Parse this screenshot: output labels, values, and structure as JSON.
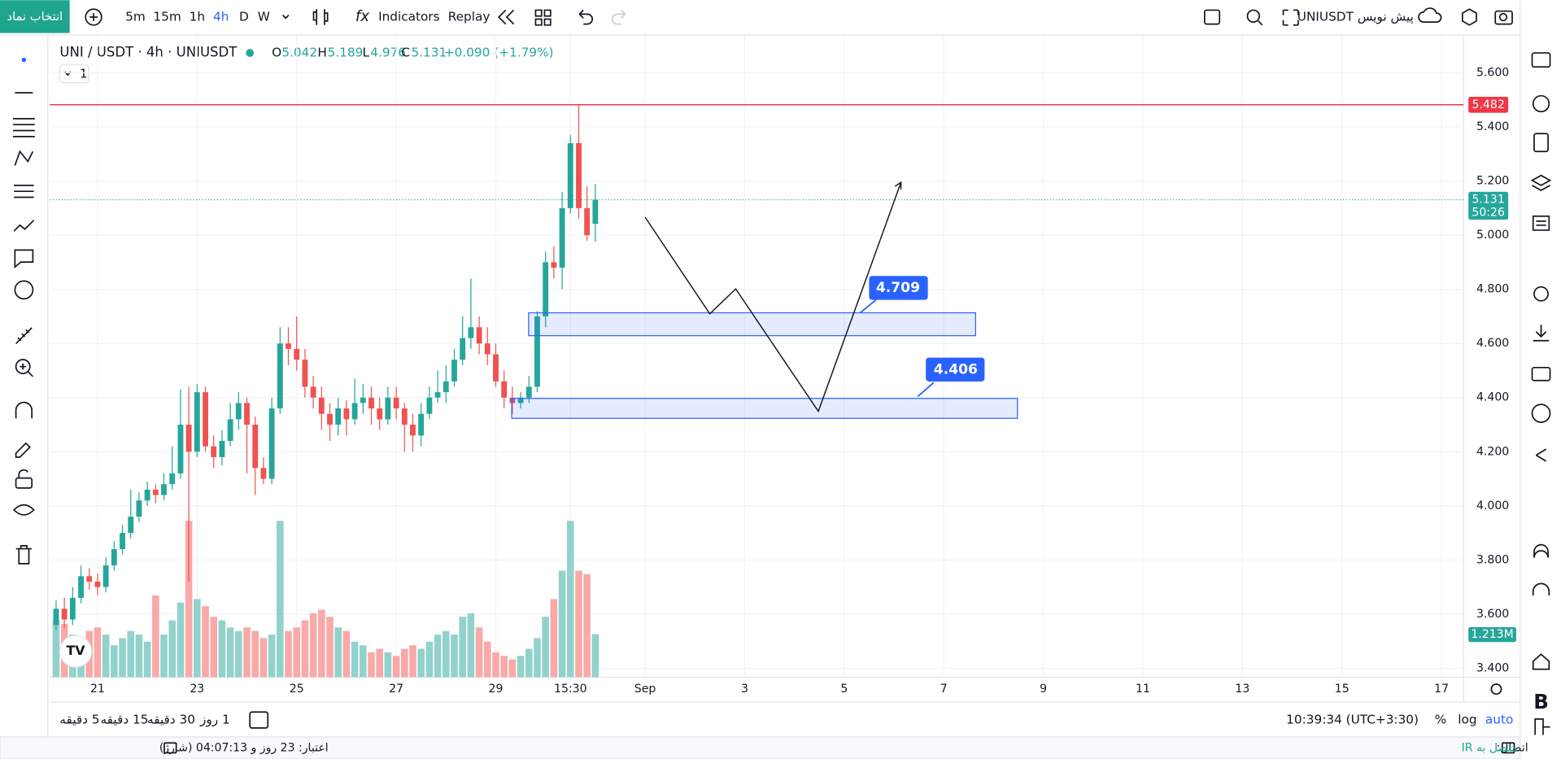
{
  "toolbar": {
    "symbol_button": "انتخاب نماد",
    "intervals": [
      "5m",
      "15m",
      "1h",
      "4h",
      "D",
      "W"
    ],
    "indicators": "Indicators",
    "replay": "Replay",
    "layout_name": "UNIUSDT پیش نویس"
  },
  "chart_data": {
    "type": "candlestick",
    "title": "UNI / USDT · 4h · UNIUSDT",
    "legend": {
      "open_label": "O",
      "open": 5.042,
      "high_label": "H",
      "high": 5.189,
      "low_label": "L",
      "low": 4.976,
      "close_label": "C",
      "close": 5.131,
      "change": "+0.090 (+1.79%)"
    },
    "collapse_button": "1",
    "x": [
      20.167,
      20.333,
      20.5,
      20.667,
      20.833,
      21,
      21.167,
      21.333,
      21.5,
      21.667,
      21.833,
      22,
      22.167,
      22.333,
      22.5,
      22.667,
      22.833,
      23,
      23.167,
      23.333,
      23.5,
      23.667,
      23.833,
      24,
      24.167,
      24.333,
      24.5,
      24.667,
      24.833,
      25,
      25.167,
      25.333,
      25.5,
      25.667,
      25.833,
      26,
      26.167,
      26.333,
      26.5,
      26.667,
      26.833,
      27,
      27.167,
      27.333,
      27.5,
      27.667,
      27.833,
      28,
      28.167,
      28.333,
      28.5,
      28.667,
      28.833,
      29,
      29.167,
      29.333,
      29.5,
      29.667,
      29.833,
      30,
      30.167,
      30.333,
      30.5,
      30.667,
      30.833,
      31
    ],
    "open": [
      3.56,
      3.62,
      3.58,
      3.66,
      3.74,
      3.72,
      3.7,
      3.78,
      3.84,
      3.9,
      3.96,
      4.02,
      4.06,
      4.04,
      4.08,
      4.12,
      4.3,
      4.2,
      4.42,
      4.22,
      4.18,
      4.24,
      4.32,
      4.38,
      4.3,
      4.14,
      4.1,
      4.36,
      4.6,
      4.58,
      4.54,
      4.44,
      4.4,
      4.34,
      4.3,
      4.36,
      4.32,
      4.38,
      4.4,
      4.36,
      4.32,
      4.4,
      4.36,
      4.3,
      4.26,
      4.34,
      4.4,
      4.42,
      4.46,
      4.54,
      4.62,
      4.66,
      4.6,
      4.56,
      4.46,
      4.4,
      4.38,
      4.4,
      4.44,
      4.7,
      4.9,
      4.88,
      5.1,
      5.34,
      5.1,
      5.042
    ],
    "high": [
      3.65,
      3.66,
      3.7,
      3.78,
      3.77,
      3.75,
      3.81,
      3.87,
      3.93,
      4.06,
      4.05,
      4.09,
      4.08,
      4.12,
      4.22,
      4.43,
      4.44,
      4.45,
      4.44,
      4.26,
      4.28,
      4.38,
      4.42,
      4.4,
      4.33,
      4.18,
      4.4,
      4.66,
      4.66,
      4.7,
      4.58,
      4.48,
      4.44,
      4.38,
      4.4,
      4.39,
      4.47,
      4.45,
      4.44,
      4.4,
      4.44,
      4.44,
      4.38,
      4.34,
      4.38,
      4.44,
      4.5,
      4.52,
      4.58,
      4.7,
      4.84,
      4.7,
      4.66,
      4.6,
      4.5,
      4.44,
      4.42,
      4.48,
      4.72,
      4.94,
      4.96,
      5.16,
      5.37,
      5.48,
      5.18,
      5.189
    ],
    "low": [
      3.54,
      3.55,
      3.56,
      3.64,
      3.69,
      3.67,
      3.68,
      3.76,
      3.82,
      3.88,
      3.94,
      4.0,
      4.01,
      4.02,
      4.06,
      4.1,
      3.72,
      4.18,
      4.2,
      4.14,
      4.15,
      4.22,
      4.28,
      4.12,
      4.04,
      4.08,
      4.08,
      4.34,
      4.52,
      4.5,
      4.4,
      4.36,
      4.28,
      4.24,
      4.26,
      4.26,
      4.3,
      4.34,
      4.3,
      4.28,
      4.3,
      4.32,
      4.2,
      4.2,
      4.22,
      4.32,
      4.38,
      4.38,
      4.44,
      4.52,
      4.58,
      4.56,
      4.52,
      4.44,
      4.36,
      4.34,
      4.36,
      4.38,
      4.42,
      4.66,
      4.84,
      4.8,
      5.08,
      5.06,
      4.98,
      4.976
    ],
    "close": [
      3.62,
      3.58,
      3.66,
      3.74,
      3.72,
      3.7,
      3.78,
      3.84,
      3.9,
      3.96,
      4.02,
      4.06,
      4.04,
      4.08,
      4.12,
      4.3,
      4.2,
      4.42,
      4.22,
      4.18,
      4.24,
      4.32,
      4.38,
      4.3,
      4.14,
      4.1,
      4.36,
      4.6,
      4.58,
      4.54,
      4.44,
      4.4,
      4.34,
      4.3,
      4.36,
      4.32,
      4.38,
      4.4,
      4.36,
      4.32,
      4.4,
      4.36,
      4.3,
      4.26,
      4.34,
      4.4,
      4.42,
      4.46,
      4.54,
      4.62,
      4.66,
      4.6,
      4.56,
      4.46,
      4.4,
      4.38,
      4.4,
      4.44,
      4.7,
      4.9,
      4.88,
      5.1,
      5.34,
      5.1,
      5.0,
      5.131
    ],
    "volume": [
      1.6,
      1.5,
      1.2,
      1.0,
      1.3,
      1.4,
      1.2,
      0.9,
      1.1,
      1.3,
      1.2,
      1.0,
      2.3,
      1.2,
      1.6,
      2.1,
      4.4,
      2.2,
      2.0,
      1.7,
      1.6,
      1.4,
      1.3,
      1.4,
      1.3,
      1.1,
      1.2,
      4.4,
      1.3,
      1.4,
      1.6,
      1.8,
      1.9,
      1.7,
      1.4,
      1.3,
      1.0,
      0.9,
      0.7,
      0.8,
      0.7,
      0.6,
      0.8,
      0.9,
      0.8,
      1.0,
      1.2,
      1.3,
      1.2,
      1.7,
      1.8,
      1.4,
      1.0,
      0.7,
      0.6,
      0.5,
      0.6,
      0.8,
      1.1,
      1.7,
      2.2,
      3.0,
      4.4,
      3.0,
      2.9,
      1.213
    ],
    "up_color": "#26a69a",
    "down_color": "#ef5350",
    "up_volume_color": "#92d2cc",
    "down_volume_color": "#f8a9a8",
    "xlim": [
      20.04,
      48.44
    ],
    "xticks": [
      21,
      23,
      25,
      27,
      29,
      {
        "value": 30.5,
        "label": "15:30"
      },
      {
        "value": 32,
        "label": "Sep"
      },
      {
        "value": 34,
        "label": "3"
      },
      {
        "value": 36,
        "label": "5"
      },
      {
        "value": 38,
        "label": "7"
      },
      {
        "value": 40,
        "label": "9"
      },
      {
        "value": 42,
        "label": "11"
      },
      {
        "value": 44,
        "label": "13"
      },
      {
        "value": 46,
        "label": "15"
      },
      {
        "value": 48,
        "label": "17"
      }
    ],
    "ylim": [
      3.367,
      5.736
    ],
    "yticks": [
      {
        "value": 3.4,
        "label": "3.400"
      },
      {
        "value": 3.6,
        "label": "3.600"
      },
      {
        "value": 3.8,
        "label": "3.800"
      },
      {
        "value": 4.0,
        "label": "4.000"
      },
      {
        "value": 4.2,
        "label": "4.200"
      },
      {
        "value": 4.4,
        "label": "4.400"
      },
      {
        "value": 4.6,
        "label": "4.600"
      },
      {
        "value": 4.8,
        "label": "4.800"
      },
      {
        "value": 5.0,
        "label": "5.000"
      },
      {
        "value": 5.2,
        "label": "5.200"
      },
      {
        "value": 5.4,
        "label": "5.400"
      },
      {
        "value": 5.6,
        "label": "5.600"
      }
    ],
    "grid": true,
    "price_line": {
      "value": 5.482,
      "color": "#f23645"
    },
    "last_price": {
      "value": 5.131,
      "countdown": "50:26"
    },
    "last_volume_label": "1.213M",
    "zone_labels": [
      4.709,
      4.406
    ]
  },
  "bottom_bar": {
    "ranges": [
      "5 دقیقه",
      "15 دقیقه",
      "30 دقیقه",
      "1 روز"
    ],
    "clock": "10:39:34 (UTC+3:30)",
    "percent": "%",
    "log": "log",
    "auto": "auto"
  },
  "status_bar": {
    "credit": "اعتبار: 23 روز و 04:07:13 (شارژ)",
    "connection": "اتصال:",
    "connection_status": "متصل به IR"
  }
}
